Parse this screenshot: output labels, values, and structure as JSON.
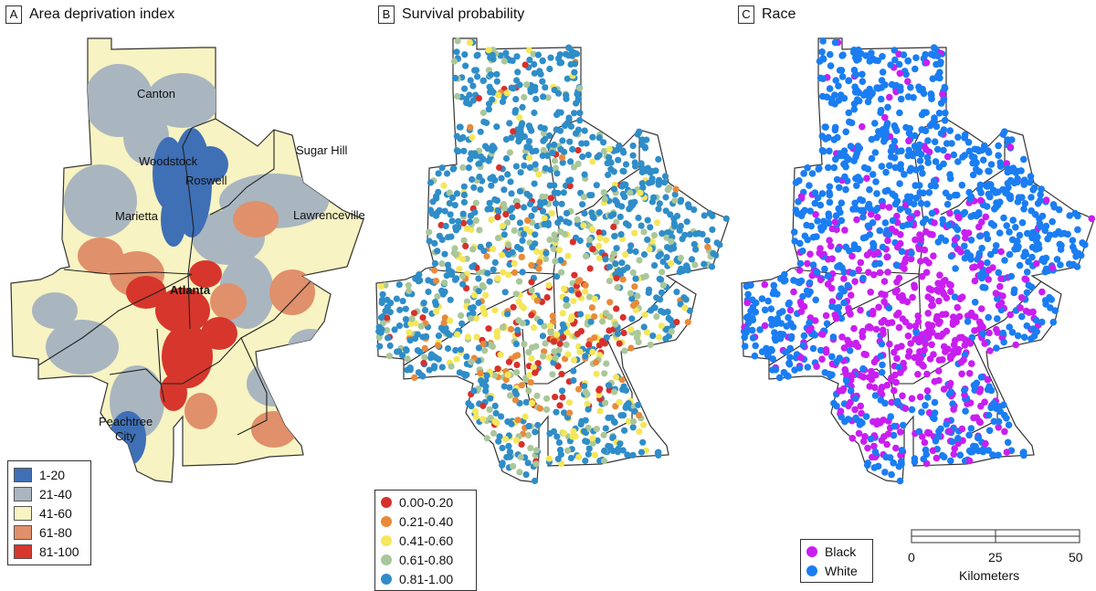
{
  "panels": [
    {
      "letter": "A",
      "title": "Area deprivation index"
    },
    {
      "letter": "B",
      "title": "Survival probability"
    },
    {
      "letter": "C",
      "title": "Race"
    }
  ],
  "cities": [
    "Canton",
    "Woodstock",
    "Roswell",
    "Sugar Hill",
    "Marietta",
    "Lawrenceville",
    "Atlanta",
    "Peachtree City"
  ],
  "legend_adi": [
    {
      "label": "1-20",
      "color": "#3f6fb5"
    },
    {
      "label": "21-40",
      "color": "#a9b6c0"
    },
    {
      "label": "41-60",
      "color": "#f7f3c2"
    },
    {
      "label": "61-80",
      "color": "#e0906a"
    },
    {
      "label": "81-100",
      "color": "#d7362c"
    }
  ],
  "legend_survival": [
    {
      "label": "0.00-0.20",
      "color": "#d7302c"
    },
    {
      "label": "0.21-0.40",
      "color": "#e88a3a"
    },
    {
      "label": "0.41-0.60",
      "color": "#f5e65a"
    },
    {
      "label": "0.61-0.80",
      "color": "#a9c79a"
    },
    {
      "label": "0.81-1.00",
      "color": "#2f8dc8"
    }
  ],
  "legend_race": [
    {
      "label": "Black",
      "color": "#c91ef0"
    },
    {
      "label": "White",
      "color": "#1a7df2"
    }
  ],
  "scale": {
    "ticks": [
      "0",
      "25",
      "50"
    ],
    "unit": "Kilometers"
  }
}
